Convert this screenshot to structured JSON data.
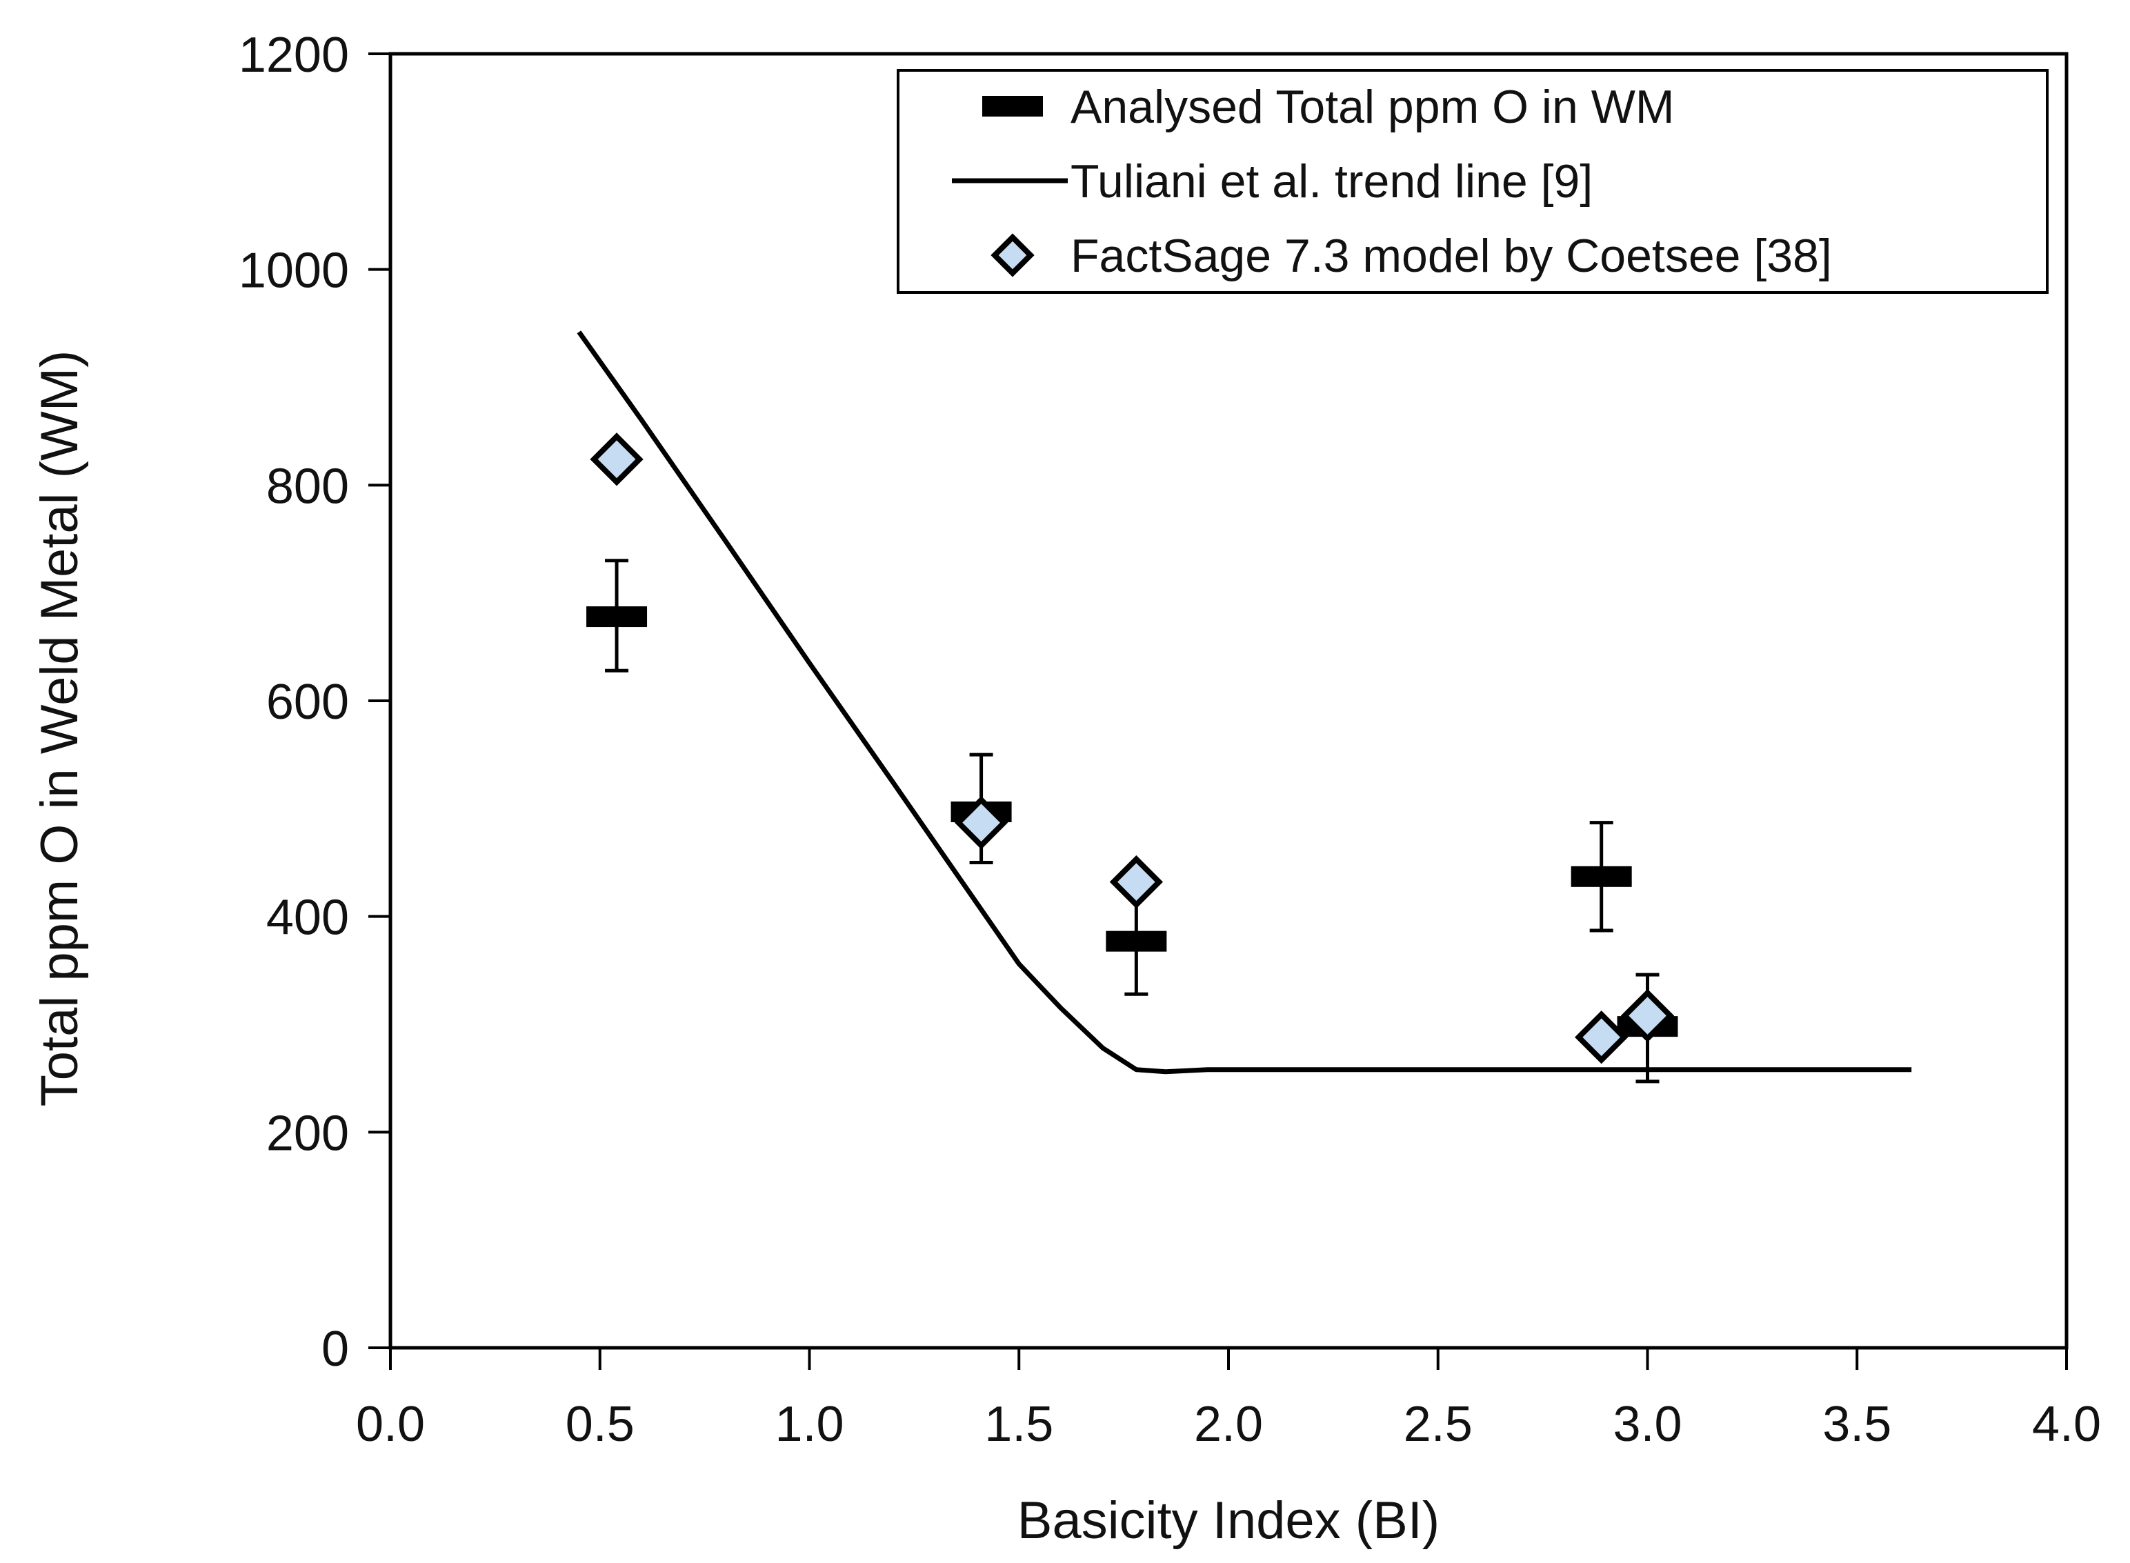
{
  "chart_data": {
    "type": "scatter",
    "title": "",
    "xlabel": "Basicity Index (BI)",
    "ylabel": "Total ppm O in Weld Metal (WM)",
    "xlim": [
      0.0,
      4.0
    ],
    "ylim": [
      0,
      1200
    ],
    "x_ticks": [
      "0.0",
      "0.5",
      "1.0",
      "1.5",
      "2.0",
      "2.5",
      "3.0",
      "3.5",
      "4.0"
    ],
    "y_ticks": [
      "0",
      "200",
      "400",
      "600",
      "800",
      "1000",
      "1200"
    ],
    "grid": false,
    "legend_position": "top-right",
    "series": [
      {
        "name": "Analysed Total ppm O in WM",
        "marker": "dash",
        "color": "#000000",
        "points": [
          {
            "x": 0.54,
            "y": 678,
            "err_low": 628,
            "err_high": 730
          },
          {
            "x": 1.41,
            "y": 497,
            "err_low": 450,
            "err_high": 550
          },
          {
            "x": 1.78,
            "y": 377,
            "err_low": 328,
            "err_high": 428
          },
          {
            "x": 2.89,
            "y": 437,
            "err_low": 387,
            "err_high": 487
          },
          {
            "x": 3.0,
            "y": 298,
            "err_low": 247,
            "err_high": 346
          }
        ]
      },
      {
        "name": "Tuliani et al. trend line [9]",
        "marker": "line",
        "color": "#000000",
        "points": [
          {
            "x": 0.45,
            "y": 942
          },
          {
            "x": 0.6,
            "y": 860
          },
          {
            "x": 0.8,
            "y": 748
          },
          {
            "x": 1.0,
            "y": 635
          },
          {
            "x": 1.2,
            "y": 524
          },
          {
            "x": 1.4,
            "y": 412
          },
          {
            "x": 1.5,
            "y": 356
          },
          {
            "x": 1.6,
            "y": 315
          },
          {
            "x": 1.7,
            "y": 278
          },
          {
            "x": 1.78,
            "y": 258
          },
          {
            "x": 1.85,
            "y": 256
          },
          {
            "x": 1.95,
            "y": 258
          },
          {
            "x": 2.5,
            "y": 258
          },
          {
            "x": 3.0,
            "y": 258
          },
          {
            "x": 3.63,
            "y": 258
          }
        ]
      },
      {
        "name": "FactSage 7.3 model by Coetsee [38]",
        "marker": "diamond",
        "color": "#c6dcf2",
        "points": [
          {
            "x": 0.54,
            "y": 824
          },
          {
            "x": 1.41,
            "y": 487
          },
          {
            "x": 1.78,
            "y": 432
          },
          {
            "x": 2.89,
            "y": 288
          },
          {
            "x": 3.0,
            "y": 308
          }
        ]
      }
    ]
  }
}
